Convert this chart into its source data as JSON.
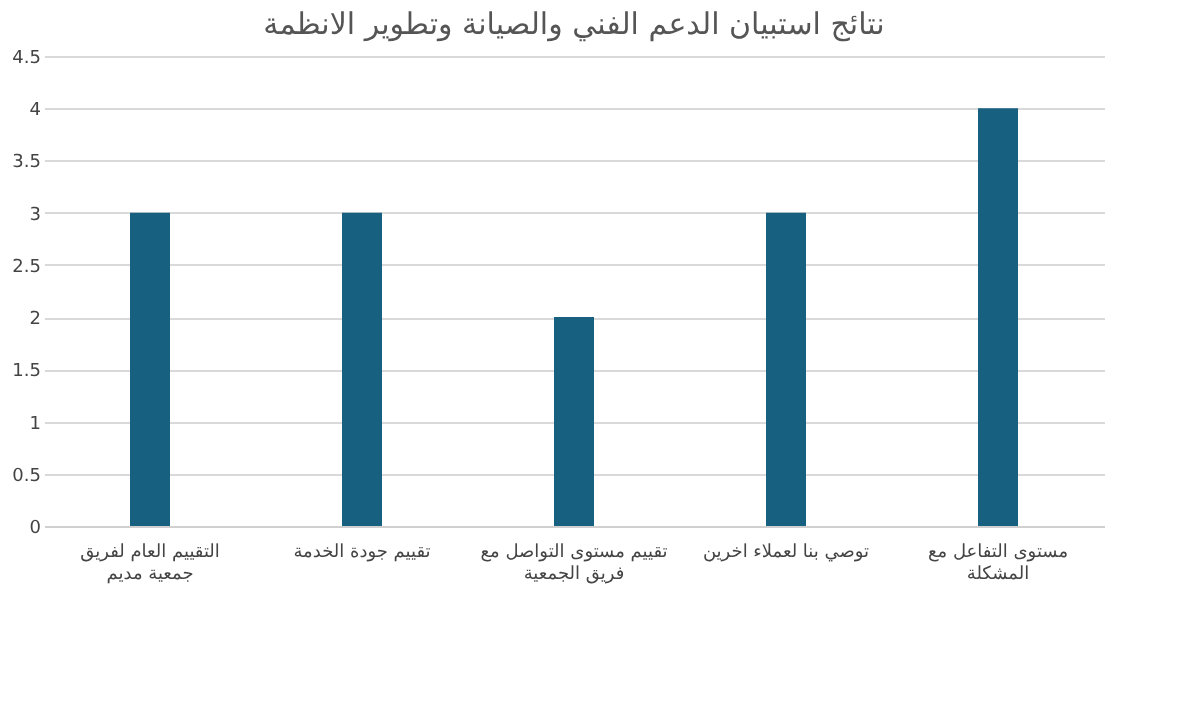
{
  "chart_data": {
    "type": "bar",
    "title": "نتائج استبيان الدعم الفني والصيانة وتطوير الانظمة",
    "categories": [
      "التقييم العام لفريق جمعية مديم",
      "تقييم جودة الخدمة",
      "تقييم مستوى التواصل مع فريق الجمعية",
      "توصي بنا لعملاء اخرين",
      "مستوى التفاعل مع المشكلة"
    ],
    "values": [
      3,
      3,
      2,
      3,
      4
    ],
    "color": "#17607f",
    "ylim": [
      0,
      4.5
    ],
    "yticks": [
      0,
      0.5,
      1,
      1.5,
      2,
      2.5,
      3,
      3.5,
      4,
      4.5
    ],
    "grid": "y"
  }
}
